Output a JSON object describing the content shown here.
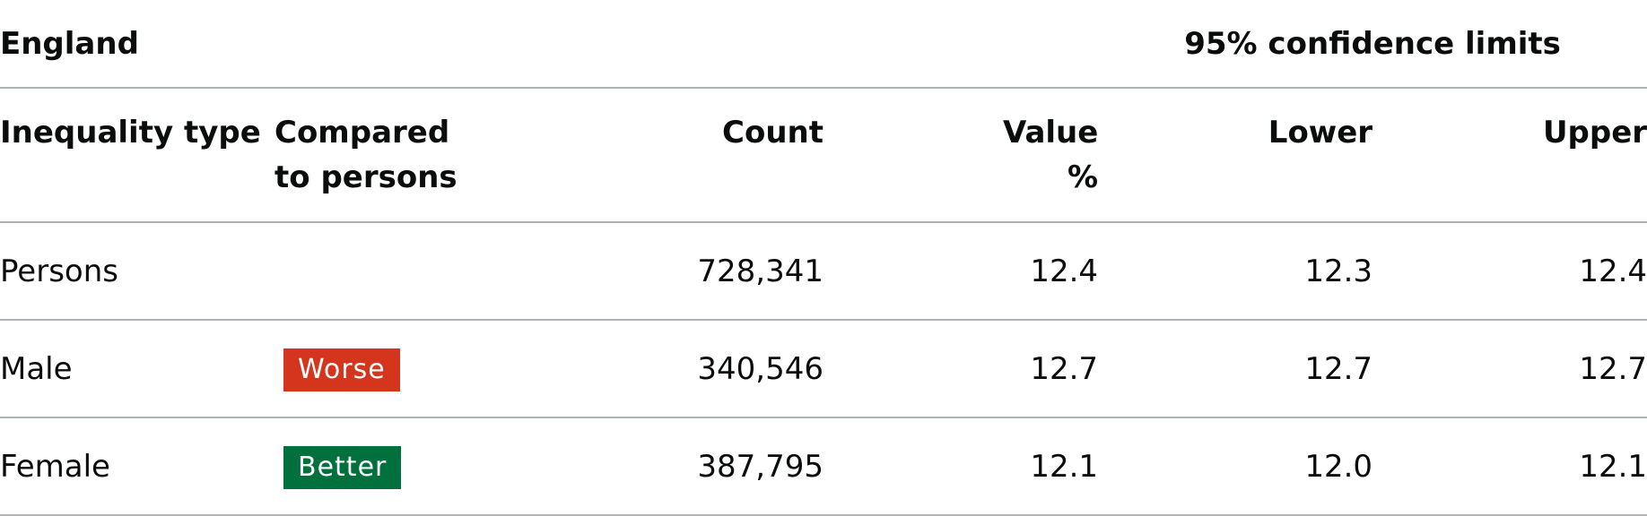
{
  "table": {
    "caption": "England",
    "ci_group_label": "95% confidence limits",
    "headers": {
      "inequality_type": "Inequality type",
      "compared_to": "Compared to persons",
      "count": "Count",
      "value": "Value %",
      "lower": "Lower",
      "upper": "Upper"
    },
    "rows": [
      {
        "inequality_type": "Persons",
        "compared": "",
        "count": "728,341",
        "value": "12.4",
        "lower": "12.3",
        "upper": "12.4"
      },
      {
        "inequality_type": "Male",
        "compared": "Worse",
        "count": "340,546",
        "value": "12.7",
        "lower": "12.7",
        "upper": "12.7"
      },
      {
        "inequality_type": "Female",
        "compared": "Better",
        "count": "387,795",
        "value": "12.1",
        "lower": "12.0",
        "upper": "12.1"
      }
    ]
  },
  "colors": {
    "worse": "#d4351c",
    "better": "#00703c",
    "rule": "#b1b4b6",
    "text": "#0b0c0c"
  }
}
